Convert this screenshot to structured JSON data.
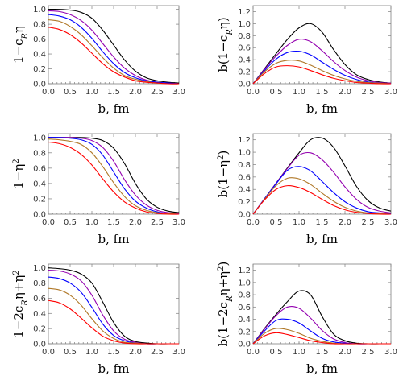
{
  "figure": {
    "colors": {
      "black": "#000000",
      "purple": "#9400b0",
      "blue": "#0000ff",
      "brown": "#b07828",
      "red": "#ff0000"
    }
  },
  "chart_data": [
    {
      "type": "line",
      "id": "p11",
      "xlabel": "b, fm",
      "ylabel": "1−c_Rη",
      "xlim": [
        0,
        3.0
      ],
      "ylim": [
        0,
        1.05
      ],
      "xticks": [
        "0.0",
        "0.5",
        "1.0",
        "1.5",
        "2.0",
        "2.5",
        "3.0"
      ],
      "yticks": [
        "0.0",
        "0.2",
        "0.4",
        "0.6",
        "0.8",
        "1.0"
      ],
      "x": [
        0,
        0.25,
        0.5,
        0.75,
        1.0,
        1.25,
        1.5,
        1.75,
        2.0,
        2.25,
        2.5,
        2.75,
        3.0
      ],
      "series": [
        {
          "color": "black",
          "values": [
            1.0,
            1.0,
            0.99,
            0.96,
            0.88,
            0.72,
            0.52,
            0.32,
            0.17,
            0.08,
            0.04,
            0.02,
            0.01
          ]
        },
        {
          "color": "purple",
          "values": [
            0.98,
            0.97,
            0.93,
            0.85,
            0.72,
            0.54,
            0.36,
            0.21,
            0.11,
            0.05,
            0.02,
            0.01,
            0.0
          ]
        },
        {
          "color": "blue",
          "values": [
            0.93,
            0.91,
            0.86,
            0.76,
            0.61,
            0.43,
            0.27,
            0.15,
            0.08,
            0.04,
            0.02,
            0.01,
            0.0
          ]
        },
        {
          "color": "brown",
          "values": [
            0.86,
            0.84,
            0.77,
            0.66,
            0.51,
            0.35,
            0.21,
            0.11,
            0.06,
            0.03,
            0.01,
            0.0,
            0.0
          ]
        },
        {
          "color": "red",
          "values": [
            0.76,
            0.73,
            0.66,
            0.55,
            0.41,
            0.27,
            0.16,
            0.09,
            0.04,
            0.02,
            0.01,
            0.0,
            0.0
          ]
        }
      ]
    },
    {
      "type": "line",
      "id": "p12",
      "xlabel": "b, fm",
      "ylabel": "b(1−c_Rη)",
      "xlim": [
        0,
        3.0
      ],
      "ylim": [
        0,
        1.3
      ],
      "xticks": [
        "0.0",
        "0.5",
        "1.0",
        "1.5",
        "2.0",
        "2.5",
        "3.0"
      ],
      "yticks": [
        "0.0",
        "0.2",
        "0.4",
        "0.6",
        "0.8",
        "1.0",
        "1.2"
      ],
      "x": [
        0,
        0.25,
        0.5,
        0.75,
        1.0,
        1.25,
        1.5,
        1.75,
        2.0,
        2.25,
        2.5,
        2.75,
        3.0
      ],
      "series": [
        {
          "color": "black",
          "values": [
            0.0,
            0.25,
            0.5,
            0.74,
            0.93,
            1.0,
            0.86,
            0.57,
            0.32,
            0.15,
            0.07,
            0.03,
            0.01
          ]
        },
        {
          "color": "purple",
          "values": [
            0.0,
            0.24,
            0.46,
            0.64,
            0.74,
            0.7,
            0.55,
            0.37,
            0.22,
            0.11,
            0.05,
            0.02,
            0.01
          ]
        },
        {
          "color": "blue",
          "values": [
            0.0,
            0.22,
            0.41,
            0.52,
            0.54,
            0.48,
            0.36,
            0.24,
            0.14,
            0.07,
            0.03,
            0.01,
            0.0
          ]
        },
        {
          "color": "brown",
          "values": [
            0.0,
            0.2,
            0.34,
            0.39,
            0.38,
            0.31,
            0.22,
            0.14,
            0.08,
            0.04,
            0.02,
            0.01,
            0.0
          ]
        },
        {
          "color": "red",
          "values": [
            0.0,
            0.17,
            0.28,
            0.3,
            0.28,
            0.22,
            0.15,
            0.09,
            0.05,
            0.02,
            0.01,
            0.0,
            0.0
          ]
        }
      ]
    },
    {
      "type": "line",
      "id": "p21",
      "xlabel": "b, fm",
      "ylabel": "1−η²",
      "xlim": [
        0,
        3.0
      ],
      "ylim": [
        0,
        1.05
      ],
      "xticks": [
        "0.0",
        "0.5",
        "1.0",
        "1.5",
        "2.0",
        "2.5",
        "3.0"
      ],
      "yticks": [
        "0.0",
        "0.2",
        "0.4",
        "0.6",
        "0.8",
        "1.0"
      ],
      "x": [
        0,
        0.25,
        0.5,
        0.75,
        1.0,
        1.25,
        1.5,
        1.75,
        2.0,
        2.25,
        2.5,
        2.75,
        3.0
      ],
      "series": [
        {
          "color": "black",
          "values": [
            1.0,
            1.0,
            1.0,
            1.0,
            0.99,
            0.96,
            0.86,
            0.66,
            0.4,
            0.2,
            0.09,
            0.04,
            0.02
          ]
        },
        {
          "color": "purple",
          "values": [
            1.0,
            1.0,
            1.0,
            0.99,
            0.96,
            0.87,
            0.69,
            0.45,
            0.25,
            0.12,
            0.05,
            0.02,
            0.01
          ]
        },
        {
          "color": "blue",
          "values": [
            1.0,
            1.0,
            0.99,
            0.97,
            0.91,
            0.77,
            0.55,
            0.33,
            0.17,
            0.08,
            0.03,
            0.01,
            0.0
          ]
        },
        {
          "color": "brown",
          "values": [
            0.98,
            0.97,
            0.95,
            0.91,
            0.8,
            0.62,
            0.41,
            0.23,
            0.11,
            0.05,
            0.02,
            0.01,
            0.0
          ]
        },
        {
          "color": "red",
          "values": [
            0.94,
            0.92,
            0.87,
            0.78,
            0.64,
            0.46,
            0.29,
            0.16,
            0.08,
            0.03,
            0.01,
            0.0,
            0.0
          ]
        }
      ]
    },
    {
      "type": "line",
      "id": "p22",
      "xlabel": "b, fm",
      "ylabel": "b(1−η²)",
      "xlim": [
        0,
        3.0
      ],
      "ylim": [
        0,
        1.3
      ],
      "xticks": [
        "0.0",
        "0.5",
        "1.0",
        "1.5",
        "2.0",
        "2.5",
        "3.0"
      ],
      "yticks": [
        "0.0",
        "0.2",
        "0.4",
        "0.6",
        "0.8",
        "1.0",
        "1.2"
      ],
      "x": [
        0,
        0.25,
        0.5,
        0.75,
        1.0,
        1.25,
        1.5,
        1.75,
        2.0,
        2.25,
        2.5,
        2.75,
        3.0
      ],
      "series": [
        {
          "color": "black",
          "values": [
            0.0,
            0.25,
            0.5,
            0.75,
            0.99,
            1.2,
            1.23,
            1.08,
            0.78,
            0.45,
            0.22,
            0.1,
            0.05
          ]
        },
        {
          "color": "purple",
          "values": [
            0.0,
            0.25,
            0.5,
            0.74,
            0.95,
            0.99,
            0.88,
            0.68,
            0.44,
            0.24,
            0.11,
            0.05,
            0.02
          ]
        },
        {
          "color": "blue",
          "values": [
            0.0,
            0.25,
            0.49,
            0.71,
            0.77,
            0.7,
            0.53,
            0.35,
            0.2,
            0.1,
            0.04,
            0.02,
            0.01
          ]
        },
        {
          "color": "brown",
          "values": [
            0.0,
            0.24,
            0.46,
            0.58,
            0.57,
            0.48,
            0.34,
            0.21,
            0.11,
            0.05,
            0.02,
            0.01,
            0.0
          ]
        },
        {
          "color": "red",
          "values": [
            0.0,
            0.23,
            0.4,
            0.46,
            0.43,
            0.35,
            0.24,
            0.14,
            0.07,
            0.03,
            0.01,
            0.0,
            0.0
          ]
        }
      ]
    },
    {
      "type": "line",
      "id": "p31",
      "xlabel": "b, fm",
      "ylabel": "1−2c_Rη+η²",
      "xlim": [
        0,
        3.0
      ],
      "ylim": [
        0,
        1.05
      ],
      "xticks": [
        "0.0",
        "0.5",
        "1.0",
        "1.5",
        "2.0",
        "2.5",
        "3.0"
      ],
      "yticks": [
        "0.0",
        "0.2",
        "0.4",
        "0.6",
        "0.8",
        "1.0"
      ],
      "x": [
        0,
        0.25,
        0.5,
        0.75,
        1.0,
        1.25,
        1.5,
        1.75,
        2.0,
        2.25,
        2.5,
        2.75,
        3.0
      ],
      "series": [
        {
          "color": "black",
          "values": [
            1.0,
            0.99,
            0.97,
            0.92,
            0.8,
            0.55,
            0.28,
            0.1,
            0.03,
            0.01,
            0.0,
            0.0,
            0.0
          ]
        },
        {
          "color": "purple",
          "values": [
            0.97,
            0.96,
            0.92,
            0.83,
            0.64,
            0.38,
            0.17,
            0.06,
            0.02,
            0.0,
            0.0,
            0.0,
            0.0
          ]
        },
        {
          "color": "blue",
          "values": [
            0.88,
            0.86,
            0.8,
            0.68,
            0.48,
            0.26,
            0.11,
            0.04,
            0.01,
            0.0,
            0.0,
            0.0,
            0.0
          ]
        },
        {
          "color": "brown",
          "values": [
            0.73,
            0.71,
            0.64,
            0.51,
            0.33,
            0.17,
            0.07,
            0.02,
            0.01,
            0.0,
            0.0,
            0.0,
            0.0
          ]
        },
        {
          "color": "red",
          "values": [
            0.57,
            0.54,
            0.46,
            0.34,
            0.21,
            0.1,
            0.04,
            0.01,
            0.0,
            0.0,
            0.0,
            0.0,
            0.0
          ]
        }
      ]
    },
    {
      "type": "line",
      "id": "p32",
      "xlabel": "b, fm",
      "ylabel": "b(1−2c_Rη+η²)",
      "xlim": [
        0,
        3.0
      ],
      "ylim": [
        0,
        1.3
      ],
      "xticks": [
        "0.0",
        "0.5",
        "1.0",
        "1.5",
        "2.0",
        "2.5",
        "3.0"
      ],
      "yticks": [
        "0.0",
        "0.2",
        "0.4",
        "0.6",
        "0.8",
        "1.0",
        "1.2"
      ],
      "x": [
        0,
        0.25,
        0.5,
        0.75,
        1.0,
        1.25,
        1.5,
        1.75,
        2.0,
        2.25,
        2.5,
        2.75,
        3.0
      ],
      "series": [
        {
          "color": "black",
          "values": [
            0.0,
            0.25,
            0.48,
            0.69,
            0.86,
            0.8,
            0.45,
            0.16,
            0.05,
            0.01,
            0.0,
            0.0,
            0.0
          ]
        },
        {
          "color": "purple",
          "values": [
            0.0,
            0.24,
            0.46,
            0.6,
            0.58,
            0.42,
            0.22,
            0.08,
            0.02,
            0.0,
            0.0,
            0.0,
            0.0
          ]
        },
        {
          "color": "blue",
          "values": [
            0.0,
            0.21,
            0.38,
            0.4,
            0.34,
            0.21,
            0.09,
            0.03,
            0.01,
            0.0,
            0.0,
            0.0,
            0.0
          ]
        },
        {
          "color": "brown",
          "values": [
            0.0,
            0.17,
            0.25,
            0.23,
            0.17,
            0.09,
            0.04,
            0.01,
            0.0,
            0.0,
            0.0,
            0.0,
            0.0
          ]
        },
        {
          "color": "red",
          "values": [
            0.0,
            0.13,
            0.18,
            0.15,
            0.1,
            0.05,
            0.02,
            0.0,
            0.0,
            0.0,
            0.0,
            0.0,
            0.0
          ]
        }
      ]
    }
  ]
}
